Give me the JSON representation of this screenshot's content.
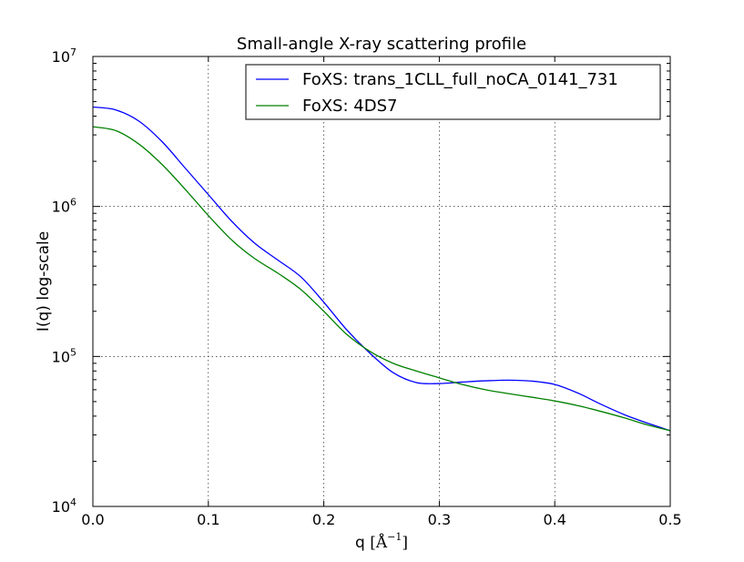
{
  "chart_data": {
    "type": "line",
    "title": "Small-angle X-ray scattering profile",
    "xlabel": "q [Å⁻¹]",
    "xlabel_main": "q ",
    "xlabel_unit_base": "[Å",
    "xlabel_unit_exp": "−1",
    "xlabel_unit_close": "]",
    "ylabel": "I(q) log-scale",
    "xlim": [
      0.0,
      0.5
    ],
    "ylim": [
      10000,
      10000000
    ],
    "yscale": "log",
    "grid": true,
    "legend_position": "top-right",
    "x_ticks": [
      {
        "value": 0.0,
        "label": "0.0"
      },
      {
        "value": 0.1,
        "label": "0.1"
      },
      {
        "value": 0.2,
        "label": "0.2"
      },
      {
        "value": 0.3,
        "label": "0.3"
      },
      {
        "value": 0.4,
        "label": "0.4"
      },
      {
        "value": 0.5,
        "label": "0.5"
      }
    ],
    "y_ticks": [
      {
        "value": 10000,
        "base": "10",
        "exp": "4"
      },
      {
        "value": 100000,
        "base": "10",
        "exp": "5"
      },
      {
        "value": 1000000,
        "base": "10",
        "exp": "6"
      },
      {
        "value": 10000000,
        "base": "10",
        "exp": "7"
      }
    ],
    "series": [
      {
        "name": "FoXS: trans_1CLL_full_noCA_0141_731",
        "color": "#0000ff",
        "x": [
          0.0,
          0.02,
          0.04,
          0.06,
          0.08,
          0.1,
          0.12,
          0.14,
          0.16,
          0.18,
          0.2,
          0.22,
          0.24,
          0.26,
          0.28,
          0.3,
          0.32,
          0.34,
          0.36,
          0.38,
          0.4,
          0.42,
          0.44,
          0.46,
          0.48,
          0.5
        ],
        "y": [
          4600000,
          4400000,
          3700000,
          2700000,
          1800000,
          1200000,
          800000,
          570000,
          440000,
          340000,
          230000,
          150000,
          105000,
          78000,
          67000,
          66000,
          67500,
          68800,
          69500,
          68500,
          65000,
          57000,
          48000,
          41000,
          36000,
          32000
        ]
      },
      {
        "name": "FoXS: 4DS7",
        "color": "#008000",
        "x": [
          0.0,
          0.02,
          0.04,
          0.06,
          0.08,
          0.1,
          0.12,
          0.14,
          0.16,
          0.18,
          0.2,
          0.22,
          0.24,
          0.26,
          0.28,
          0.3,
          0.32,
          0.34,
          0.36,
          0.38,
          0.4,
          0.42,
          0.44,
          0.46,
          0.48,
          0.5
        ],
        "y": [
          3400000,
          3200000,
          2600000,
          1900000,
          1300000,
          870000,
          600000,
          450000,
          360000,
          280000,
          200000,
          140000,
          108000,
          90000,
          80000,
          72000,
          65000,
          60000,
          56500,
          53500,
          50500,
          47000,
          43000,
          39000,
          35000,
          32000
        ]
      }
    ]
  }
}
